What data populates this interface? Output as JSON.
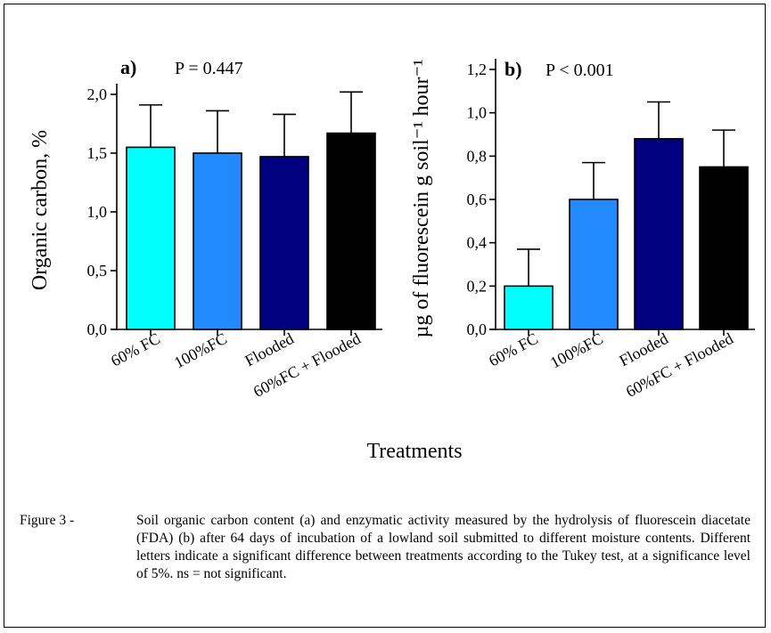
{
  "figure": {
    "xlabel_shared": "Treatments",
    "caption_label": "Figure 3 - ",
    "caption_text": "Soil organic carbon content (a) and enzymatic activity measured by the hydrolysis of fluorescein diacetate (FDA) (b) after 64 days of incubation of a lowland soil submitted to different moisture contents. Different letters indicate a significant difference between treatments according to the Tukey test, at a significance level of 5%. ns = not significant."
  },
  "chart_data": [
    {
      "type": "bar",
      "panel_label": "a)",
      "annotation": "P = 0.447",
      "ylabel": "Organic carbon, %",
      "categories": [
        "60% FC",
        "100%FC",
        "Flooded",
        "60%FC + Flooded"
      ],
      "values": [
        1.55,
        1.5,
        1.47,
        1.67
      ],
      "error": [
        0.36,
        0.36,
        0.36,
        0.35
      ],
      "colors": [
        "#00ffff",
        "#2389ff",
        "#000080",
        "#000000"
      ],
      "ylim": [
        0,
        2.0
      ],
      "yticks": [
        "0,0",
        "0,5",
        "1,0",
        "1,5",
        "2,0"
      ],
      "ytick_values": [
        0,
        0.5,
        1.0,
        1.5,
        2.0
      ],
      "grid": false
    },
    {
      "type": "bar",
      "panel_label": "b)",
      "annotation": "P < 0.001",
      "ylabel": "µg of fluorescein g soil⁻¹ hour⁻¹",
      "categories": [
        "60% FC",
        "100%FC",
        "Flooded",
        "60%FC + Flooded"
      ],
      "values": [
        0.2,
        0.6,
        0.88,
        0.75
      ],
      "error": [
        0.17,
        0.17,
        0.17,
        0.17
      ],
      "colors": [
        "#00ffff",
        "#2389ff",
        "#000080",
        "#000000"
      ],
      "ylim": [
        0,
        1.2
      ],
      "yticks": [
        "0,0",
        "0,2",
        "0,4",
        "0,6",
        "0,8",
        "1,0",
        "1,2"
      ],
      "ytick_values": [
        0,
        0.2,
        0.4,
        0.6,
        0.8,
        1.0,
        1.2
      ],
      "grid": false
    }
  ]
}
